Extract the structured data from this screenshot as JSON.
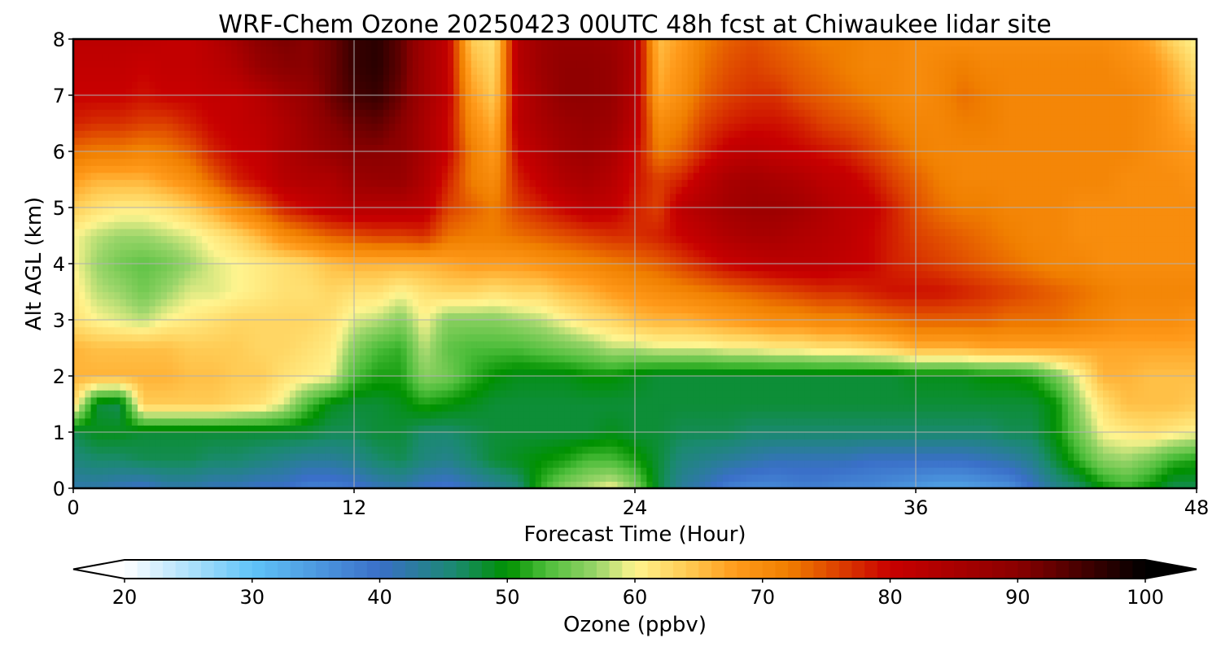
{
  "chart_data": {
    "type": "heatmap",
    "title": "WRF-Chem Ozone  20250423 00UTC 48h fcst at Chiwaukee lidar site",
    "xlabel": "Forecast Time (Hour)",
    "ylabel": "Alt AGL (km)",
    "xlim": [
      0,
      48
    ],
    "ylim": [
      0,
      8
    ],
    "x_ticks": [
      0,
      12,
      24,
      36,
      48
    ],
    "y_ticks": [
      0,
      1,
      2,
      3,
      4,
      5,
      6,
      7,
      8
    ],
    "grid": true,
    "colorbar": {
      "label": "Ozone  (ppbv)",
      "range": [
        20,
        100
      ],
      "ticks": [
        20,
        30,
        40,
        50,
        60,
        70,
        80,
        90,
        100
      ],
      "extend": "both",
      "colors": [
        "#ffffff",
        "#60c4f8",
        "#3a6fc8",
        "#1a8a6e",
        "#009100",
        "#4cbd3a",
        "#9ad56a",
        "#fff48f",
        "#ffcc55",
        "#ff9a1a",
        "#f07f00",
        "#c80000",
        "#8a0000",
        "#000000"
      ],
      "color_stops": [
        20,
        30,
        40,
        46,
        50,
        53,
        57,
        60,
        64,
        68,
        72,
        80,
        90,
        100
      ]
    },
    "x": [
      0,
      1,
      2,
      3,
      4,
      5,
      6,
      7,
      8,
      9,
      10,
      11,
      12,
      13,
      14,
      15,
      16,
      17,
      18,
      19,
      20,
      21,
      22,
      23,
      24,
      25,
      26,
      27,
      28,
      29,
      30,
      31,
      32,
      33,
      34,
      35,
      36,
      37,
      38,
      39,
      40,
      41,
      42,
      43,
      44,
      45,
      46,
      47,
      48
    ],
    "y": [
      0,
      0.5,
      1,
      1.5,
      2,
      2.5,
      3,
      3.5,
      4,
      4.5,
      5,
      5.5,
      6,
      6.5,
      7,
      7.5,
      8
    ],
    "z": [
      [
        42,
        42,
        41,
        40,
        42,
        42,
        41,
        41,
        40,
        40,
        38,
        38,
        39,
        41,
        42,
        40,
        39,
        41,
        43,
        45,
        52,
        56,
        58,
        60,
        56,
        48,
        43,
        41,
        38,
        37,
        37,
        38,
        38,
        37,
        37,
        36,
        35,
        34,
        34,
        35,
        36,
        40,
        44,
        46,
        50,
        52,
        50,
        47,
        47
      ],
      [
        45,
        46,
        46,
        47,
        47,
        47,
        46,
        46,
        45,
        44,
        43,
        43,
        44,
        46,
        47,
        45,
        44,
        46,
        48,
        49,
        50,
        51,
        53,
        53,
        51,
        48,
        45,
        44,
        43,
        42,
        41,
        41,
        41,
        41,
        40,
        40,
        40,
        40,
        40,
        41,
        42,
        44,
        48,
        52,
        56,
        57,
        55,
        52,
        51
      ],
      [
        47,
        49,
        49,
        48,
        48,
        48,
        48,
        48,
        48,
        48,
        48,
        47,
        47,
        48,
        48,
        46,
        46,
        47,
        48,
        48,
        48,
        48,
        48,
        49,
        48,
        48,
        47,
        47,
        47,
        46,
        46,
        46,
        46,
        46,
        46,
        46,
        46,
        46,
        46,
        46,
        47,
        47,
        50,
        55,
        60,
        61,
        62,
        61,
        60
      ],
      [
        63,
        48,
        47,
        64,
        64,
        64,
        64,
        63,
        62,
        59,
        53,
        49,
        48,
        48,
        49,
        51,
        50,
        49,
        48,
        48,
        48,
        48,
        48,
        48,
        48,
        48,
        48,
        48,
        48,
        48,
        48,
        48,
        48,
        48,
        48,
        48,
        48,
        48,
        48,
        48,
        48,
        48,
        50,
        57,
        62,
        65,
        65,
        65,
        64
      ],
      [
        66,
        66,
        66,
        66,
        66,
        65,
        65,
        64,
        64,
        62,
        61,
        60,
        53,
        51,
        51,
        56,
        55,
        52,
        50,
        49,
        49,
        49,
        50,
        50,
        49,
        48,
        48,
        48,
        48,
        48,
        48,
        48,
        48,
        48,
        48,
        48,
        49,
        49,
        49,
        50,
        50,
        51,
        55,
        60,
        66,
        66,
        65,
        65,
        65
      ],
      [
        66,
        65,
        65,
        65,
        65,
        64,
        64,
        64,
        63,
        63,
        62,
        61,
        56,
        53,
        52,
        58,
        54,
        53,
        53,
        53,
        54,
        55,
        56,
        58,
        58,
        59,
        59,
        59,
        60,
        60,
        61,
        61,
        62,
        62,
        63,
        64,
        66,
        66,
        66,
        67,
        67,
        67,
        67,
        67,
        67,
        67,
        67,
        67,
        67
      ],
      [
        62,
        60,
        59,
        58,
        60,
        61,
        62,
        63,
        63,
        63,
        63,
        62,
        59,
        58,
        56,
        60,
        56,
        56,
        56,
        57,
        58,
        60,
        62,
        63,
        65,
        66,
        66,
        67,
        68,
        69,
        70,
        70,
        71,
        71,
        72,
        73,
        74,
        74,
        74,
        74,
        73,
        73,
        73,
        72,
        71,
        70,
        70,
        70,
        69
      ],
      [
        61,
        58,
        57,
        55,
        57,
        59,
        59,
        60,
        61,
        62,
        62,
        63,
        62,
        62,
        60,
        62,
        63,
        63,
        62,
        63,
        63,
        65,
        66,
        68,
        69,
        70,
        71,
        72,
        73,
        74,
        75,
        76,
        77,
        77,
        78,
        79,
        79,
        79,
        78,
        77,
        76,
        75,
        74,
        73,
        72,
        71,
        71,
        71,
        71
      ],
      [
        60,
        57,
        55,
        54,
        55,
        57,
        59,
        60,
        61,
        62,
        63,
        65,
        66,
        66,
        66,
        66,
        67,
        68,
        68,
        68,
        69,
        70,
        71,
        72,
        73,
        74,
        76,
        78,
        80,
        81,
        82,
        82,
        82,
        81,
        80,
        78,
        77,
        76,
        75,
        74,
        73,
        72,
        71,
        71,
        70,
        70,
        70,
        70,
        70
      ],
      [
        60,
        58,
        57,
        57,
        58,
        59,
        61,
        63,
        66,
        70,
        72,
        74,
        75,
        76,
        76,
        77,
        73,
        72,
        72,
        73,
        74,
        75,
        76,
        77,
        77,
        78,
        80,
        82,
        84,
        85,
        85,
        84,
        83,
        82,
        80,
        78,
        76,
        75,
        74,
        73,
        72,
        71,
        71,
        70,
        70,
        70,
        70,
        70,
        70
      ],
      [
        64,
        62,
        61,
        61,
        62,
        64,
        67,
        71,
        74,
        78,
        80,
        82,
        83,
        83,
        83,
        82,
        76,
        74,
        72,
        76,
        78,
        80,
        82,
        81,
        78,
        76,
        82,
        84,
        86,
        87,
        87,
        86,
        84,
        82,
        81,
        78,
        75,
        73,
        72,
        72,
        71,
        71,
        71,
        70,
        70,
        70,
        70,
        70,
        70
      ],
      [
        68,
        66,
        66,
        66,
        68,
        70,
        74,
        78,
        80,
        83,
        84,
        84,
        87,
        88,
        88,
        84,
        78,
        72,
        70,
        78,
        81,
        84,
        85,
        83,
        79,
        76,
        78,
        82,
        85,
        86,
        85,
        84,
        82,
        81,
        79,
        76,
        74,
        72,
        71,
        71,
        71,
        71,
        71,
        71,
        71,
        70,
        70,
        70,
        69
      ],
      [
        73,
        72,
        72,
        71,
        72,
        74,
        78,
        80,
        81,
        84,
        86,
        88,
        90,
        90,
        89,
        85,
        80,
        72,
        68,
        80,
        83,
        86,
        87,
        85,
        80,
        72,
        74,
        78,
        81,
        82,
        81,
        80,
        79,
        78,
        76,
        74,
        72,
        71,
        71,
        71,
        71,
        71,
        71,
        71,
        71,
        71,
        70,
        69,
        68
      ],
      [
        78,
        77,
        77,
        76,
        76,
        78,
        80,
        81,
        82,
        84,
        87,
        90,
        92,
        93,
        90,
        85,
        80,
        70,
        66,
        82,
        85,
        87,
        88,
        87,
        82,
        70,
        72,
        76,
        78,
        79,
        79,
        78,
        76,
        75,
        74,
        72,
        71,
        71,
        72,
        72,
        71,
        71,
        71,
        71,
        71,
        71,
        70,
        68,
        66
      ],
      [
        80,
        80,
        80,
        79,
        80,
        80,
        81,
        81,
        83,
        86,
        88,
        92,
        95,
        96,
        92,
        86,
        81,
        68,
        64,
        82,
        86,
        89,
        89,
        88,
        83,
        67,
        70,
        74,
        76,
        77,
        77,
        75,
        74,
        73,
        72,
        71,
        70,
        71,
        73,
        72,
        71,
        71,
        71,
        71,
        71,
        71,
        70,
        67,
        64
      ],
      [
        81,
        81,
        81,
        80,
        81,
        81,
        82,
        84,
        88,
        90,
        90,
        92,
        96,
        97,
        93,
        86,
        81,
        66,
        63,
        83,
        87,
        89,
        89,
        88,
        84,
        66,
        69,
        73,
        75,
        76,
        75,
        74,
        73,
        72,
        71,
        71,
        70,
        71,
        72,
        71,
        71,
        71,
        71,
        71,
        71,
        70,
        69,
        66,
        62
      ],
      [
        82,
        82,
        82,
        82,
        81,
        81,
        83,
        86,
        90,
        91,
        90,
        92,
        96,
        97,
        93,
        86,
        81,
        64,
        62,
        83,
        87,
        88,
        88,
        87,
        84,
        65,
        68,
        72,
        74,
        75,
        74,
        73,
        72,
        72,
        71,
        71,
        70,
        70,
        70,
        70,
        70,
        70,
        70,
        70,
        70,
        69,
        67,
        63,
        60
      ]
    ]
  }
}
